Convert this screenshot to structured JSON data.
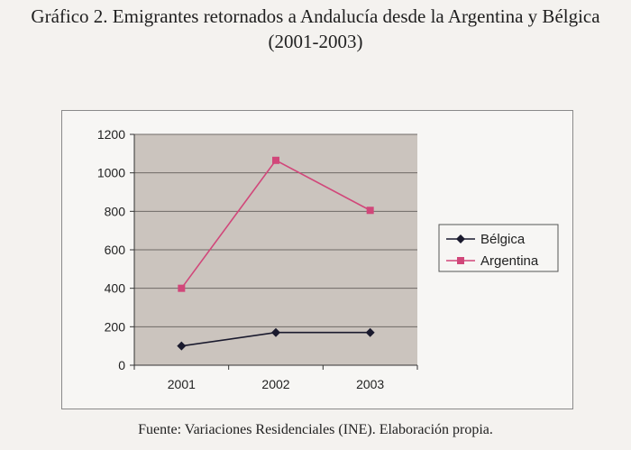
{
  "title": {
    "line1": "Gráfico 2. Emigrantes retornados a Andalucía desde la Argentina y Bélgica",
    "line2": "(2001-2003)"
  },
  "source": "Fuente: Variaciones Residenciales (INE). Elaboración propia.",
  "chart_data": {
    "type": "line",
    "categories": [
      "2001",
      "2002",
      "2003"
    ],
    "series": [
      {
        "name": "Bélgica",
        "values": [
          100,
          170,
          170
        ],
        "color": "#1a1a2e",
        "marker": "diamond"
      },
      {
        "name": "Argentina",
        "values": [
          400,
          1065,
          805
        ],
        "color": "#d1477a",
        "marker": "square"
      }
    ],
    "ylim": [
      0,
      1200
    ],
    "yticks": [
      0,
      200,
      400,
      600,
      800,
      1000,
      1200
    ],
    "grid": true,
    "plot_background": "#cbc4be",
    "legend_position": "right"
  }
}
